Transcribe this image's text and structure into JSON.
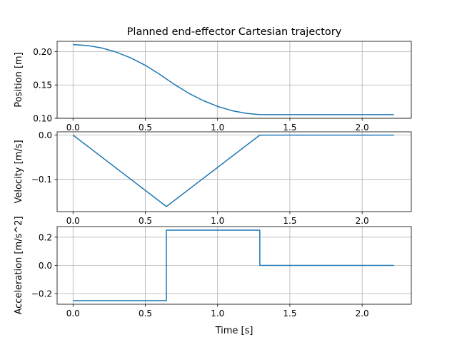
{
  "chart_data": {
    "title": "Planned end-effector Cartesian trajectory",
    "type": "line",
    "line_color": "#1f77b4",
    "grid": true,
    "xlabel": "Time [s]",
    "xlim": [
      -0.11,
      2.34
    ],
    "xticks": [
      0.0,
      0.5,
      1.0,
      1.5,
      2.0
    ],
    "xtick_labels": [
      "0.0",
      "0.5",
      "1.0",
      "1.5",
      "2.0"
    ],
    "subplots": [
      {
        "ylabel": "Position [m]",
        "ylim": [
          0.1,
          0.2155
        ],
        "yticks": [
          0.1,
          0.15,
          0.2
        ],
        "ytick_labels": [
          "0.10",
          "0.15",
          "0.20"
        ],
        "series": [
          {
            "x": [
              0.0,
              0.1,
              0.2,
              0.3,
              0.4,
              0.5,
              0.6,
              0.646,
              0.7,
              0.8,
              0.9,
              1.0,
              1.1,
              1.2,
              1.292,
              1.5,
              2.0,
              2.22
            ],
            "y": [
              0.2105,
              0.2092,
              0.2055,
              0.1993,
              0.1906,
              0.1795,
              0.1659,
              0.159,
              0.151,
              0.1376,
              0.1266,
              0.1178,
              0.1114,
              0.1073,
              0.1055,
              0.1055,
              0.1055,
              0.1055
            ]
          }
        ]
      },
      {
        "ylabel": "Velocity [m/s]",
        "ylim": [
          -0.173,
          0.0075
        ],
        "yticks": [
          -0.1,
          0.0
        ],
        "ytick_labels": [
          "−0.1",
          "0.0"
        ],
        "series": [
          {
            "x": [
              0.0,
              0.646,
              1.292,
              2.22
            ],
            "y": [
              0.0,
              -0.1615,
              0.0,
              0.0
            ]
          }
        ]
      },
      {
        "ylabel": "Acceleration [m/s^2]",
        "ylim": [
          -0.275,
          0.275
        ],
        "yticks": [
          -0.2,
          0.0,
          0.2
        ],
        "ytick_labels": [
          "−0.2",
          "0.0",
          "0.2"
        ],
        "series": [
          {
            "x": [
              0.0,
              0.646,
              0.646,
              1.292,
              1.292,
              2.22
            ],
            "y": [
              -0.25,
              -0.25,
              0.25,
              0.25,
              0.0,
              0.0
            ]
          }
        ]
      }
    ]
  }
}
